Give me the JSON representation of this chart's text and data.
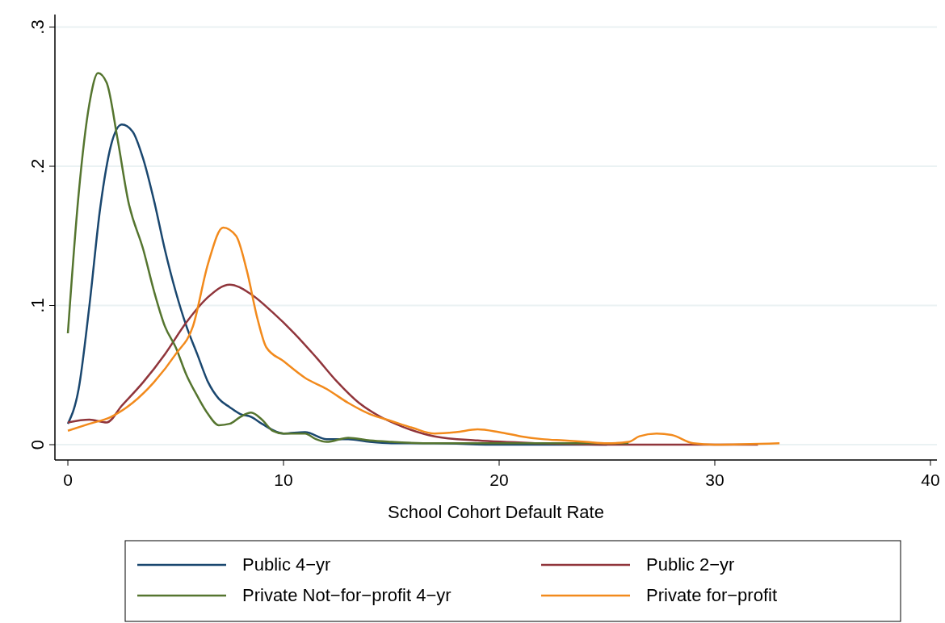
{
  "chart_data": {
    "type": "line",
    "xlabel": "School Cohort Default Rate",
    "xlim": [
      -0.6,
      40.3
    ],
    "xticks": [
      0,
      10,
      20,
      30,
      40
    ],
    "ylim": [
      -0.011,
      0.309
    ],
    "yticks": [
      0,
      {
        "value": 0.1,
        "label": ".1"
      },
      {
        "value": 0.2,
        "label": ".2"
      },
      {
        "value": 0.3,
        "label": ".3"
      }
    ],
    "grid": "y",
    "legend": "bottom",
    "line_style": "solid",
    "marker": "none",
    "series": [
      {
        "name": "Public 4−yr",
        "color": "#1a476f",
        "x": [
          0,
          0.5,
          1,
          1.5,
          2,
          2.5,
          3,
          3.5,
          4,
          4.5,
          5,
          5.5,
          6,
          6.5,
          7,
          7.5,
          8,
          8.5,
          9,
          10,
          11,
          12,
          13,
          14,
          15,
          17,
          20,
          25
        ],
        "values": [
          0.015,
          0.04,
          0.1,
          0.17,
          0.215,
          0.23,
          0.225,
          0.205,
          0.175,
          0.14,
          0.11,
          0.085,
          0.065,
          0.045,
          0.033,
          0.027,
          0.022,
          0.02,
          0.015,
          0.008,
          0.009,
          0.004,
          0.004,
          0.002,
          0.001,
          0.001,
          0,
          0
        ]
      },
      {
        "name": "Public 2−yr",
        "color": "#90353b",
        "x": [
          0,
          1,
          1.8,
          2.5,
          3.5,
          4.5,
          5.5,
          6.5,
          7.5,
          8.5,
          9.5,
          10.5,
          11.5,
          12.5,
          13.5,
          14.5,
          15.5,
          17,
          19,
          22,
          25,
          29,
          32
        ],
        "values": [
          0.016,
          0.018,
          0.016,
          0.028,
          0.045,
          0.065,
          0.088,
          0.106,
          0.115,
          0.108,
          0.095,
          0.08,
          0.063,
          0.045,
          0.03,
          0.02,
          0.013,
          0.006,
          0.003,
          0.001,
          0,
          0,
          0
        ]
      },
      {
        "name": "Private Not−for−profit 4−yr",
        "color": "#55752f",
        "x": [
          0,
          0.5,
          1,
          1.4,
          1.8,
          2.3,
          2.8,
          3.5,
          4,
          4.5,
          5,
          5.5,
          6,
          6.5,
          7,
          7.5,
          8,
          8.5,
          9,
          9.5,
          10,
          11,
          11.5,
          12,
          13,
          14,
          15,
          17,
          20,
          25,
          26
        ],
        "values": [
          0.08,
          0.18,
          0.245,
          0.267,
          0.26,
          0.22,
          0.175,
          0.14,
          0.11,
          0.085,
          0.07,
          0.05,
          0.035,
          0.022,
          0.014,
          0.015,
          0.02,
          0.023,
          0.018,
          0.01,
          0.008,
          0.008,
          0.004,
          0.002,
          0.005,
          0.003,
          0.002,
          0.001,
          0.001,
          0.001,
          0.001
        ]
      },
      {
        "name": "Private for−profit",
        "color": "#f28a1c",
        "x": [
          0,
          1,
          2,
          3,
          4,
          5,
          5.8,
          6.5,
          7.2,
          7.8,
          8.3,
          8.8,
          9.2,
          10,
          11,
          12,
          13,
          14,
          15,
          16,
          17,
          18,
          19,
          20,
          21,
          22,
          23,
          24,
          25,
          26,
          26.5,
          27.3,
          28,
          29,
          30,
          33
        ],
        "values": [
          0.01,
          0.015,
          0.02,
          0.03,
          0.045,
          0.065,
          0.085,
          0.13,
          0.156,
          0.15,
          0.125,
          0.09,
          0.07,
          0.06,
          0.048,
          0.04,
          0.03,
          0.022,
          0.017,
          0.012,
          0.008,
          0.009,
          0.011,
          0.009,
          0.006,
          0.004,
          0.003,
          0.002,
          0.001,
          0.002,
          0.006,
          0.008,
          0.007,
          0.001,
          0,
          0.001
        ]
      }
    ]
  }
}
